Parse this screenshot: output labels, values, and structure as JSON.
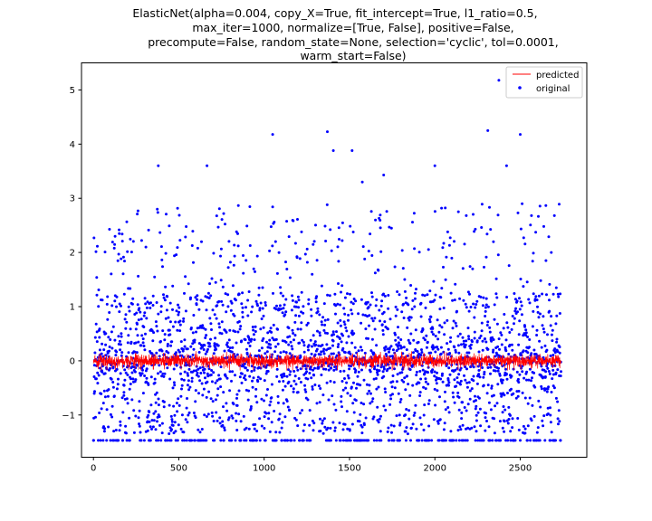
{
  "chart_data": {
    "type": "scatter",
    "title_lines": [
      "ElasticNet(alpha=0.004, copy_X=True, fit_intercept=True, l1_ratio=0.5,",
      "max_iter=1000, normalize=[True, False], positive=False,",
      "precompute=False, random_state=None, selection='cyclic', tol=0.0001,",
      "warm_start=False)"
    ],
    "xlabel": "",
    "ylabel": "",
    "xlim": [
      -70,
      2890
    ],
    "ylim": [
      -1.78,
      5.5
    ],
    "x_ticks": [
      0,
      500,
      1000,
      1500,
      2000,
      2500
    ],
    "x_tick_labels": [
      "0",
      "500",
      "1000",
      "1500",
      "2000",
      "2500"
    ],
    "y_ticks": [
      -1,
      0,
      1,
      2,
      3,
      4,
      5
    ],
    "y_tick_labels": [
      "−1",
      "0",
      "1",
      "2",
      "3",
      "4",
      "5"
    ],
    "grid": false,
    "legend_position": "top-right",
    "n_points": 2740,
    "series": [
      {
        "name": "predicted",
        "kind": "line",
        "color": "#ff0000",
        "x_range": [
          0,
          2740
        ],
        "y_center": 0.0,
        "y_spread": [
          -0.18,
          0.18
        ]
      },
      {
        "name": "original",
        "kind": "scatter",
        "color": "#0000ff",
        "x_range": [
          0,
          2740
        ],
        "floor_value": -1.47,
        "notable_points": [
          {
            "x": 380,
            "y": 3.6
          },
          {
            "x": 665,
            "y": 3.6
          },
          {
            "x": 1050,
            "y": 4.18
          },
          {
            "x": 1370,
            "y": 4.23
          },
          {
            "x": 1405,
            "y": 3.88
          },
          {
            "x": 1515,
            "y": 3.88
          },
          {
            "x": 1575,
            "y": 3.3
          },
          {
            "x": 1700,
            "y": 3.43
          },
          {
            "x": 2000,
            "y": 3.6
          },
          {
            "x": 2310,
            "y": 4.25
          },
          {
            "x": 2375,
            "y": 5.18
          },
          {
            "x": 2420,
            "y": 3.6
          },
          {
            "x": 2500,
            "y": 4.18
          },
          {
            "x": 2700,
            "y": 2.68
          }
        ]
      }
    ],
    "legend": [
      {
        "label": "predicted",
        "marker": "line",
        "color": "#ff0000"
      },
      {
        "label": "original",
        "marker": "dot",
        "color": "#0000ff"
      }
    ]
  }
}
